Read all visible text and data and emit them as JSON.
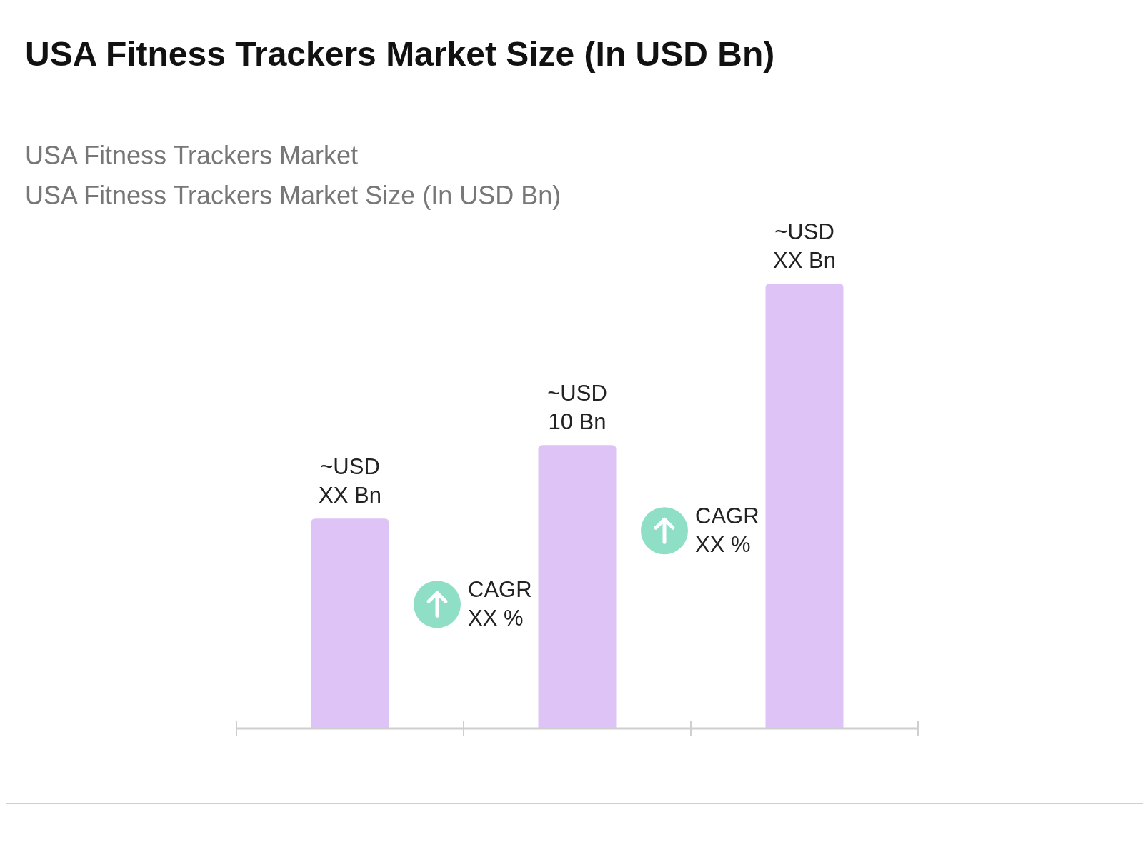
{
  "chart_data": {
    "type": "bar",
    "title": "USA Fitness Trackers Market Size (In USD Bn)",
    "subtitle": "USA Fitness Trackers Market\nUSA Fitness Trackers Market Size (In USD Bn)",
    "categories": [
      null,
      null,
      null
    ],
    "values": [
      7.4,
      10,
      15.7
    ],
    "color": "#dec3f6",
    "value_labels": [
      "~USD\nXX Bn",
      "~USD\n10 Bn",
      "~USD\nXX Bn"
    ],
    "annotations": [
      "CAGR\nXX %",
      "CAGR\nXX %"
    ]
  }
}
